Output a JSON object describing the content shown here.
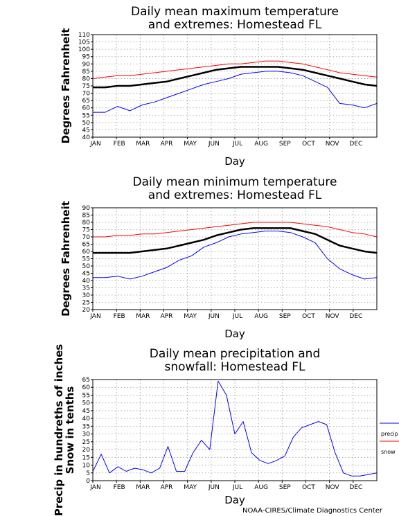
{
  "chart_data": [
    {
      "type": "line",
      "title": [
        "Daily mean maximum temperature",
        "and extremes: Homestead FL"
      ],
      "ylabel": "Degrees Fahrenheit",
      "xlabel": "Day",
      "x_ticks": [
        "JAN",
        "FEB",
        "MAR",
        "APR",
        "MAY",
        "JUN",
        "JUL",
        "AUG",
        "SEP",
        "OCT",
        "NOV",
        "DEC"
      ],
      "ylim": [
        40,
        110
      ],
      "ystep": 5,
      "grid": true,
      "series": [
        {
          "color": "#ff0000",
          "width": 1,
          "values": [
            80,
            81,
            82,
            82,
            83,
            84,
            85,
            86,
            87,
            88,
            89,
            90,
            90,
            91,
            92,
            92,
            91,
            90,
            88,
            86,
            84,
            83,
            82,
            81
          ]
        },
        {
          "color": "#000000",
          "width": 2.5,
          "values": [
            74,
            74,
            75,
            75,
            76,
            77,
            78,
            80,
            82,
            84,
            86,
            87,
            88,
            88,
            88,
            88,
            87,
            86,
            84,
            82,
            80,
            78,
            76,
            75
          ]
        },
        {
          "color": "#0000ff",
          "width": 1,
          "values": [
            57,
            57,
            61,
            58,
            62,
            64,
            67,
            70,
            73,
            76,
            78,
            80,
            83,
            84,
            85,
            85,
            84,
            82,
            78,
            74,
            63,
            62,
            60,
            63
          ]
        }
      ]
    },
    {
      "type": "line",
      "title": [
        "Daily mean minimum temperature",
        "and extremes: Homestead FL"
      ],
      "ylabel": "Degrees Fahrenheit",
      "xlabel": "Day",
      "x_ticks": [
        "JAN",
        "FEB",
        "MAR",
        "APR",
        "MAY",
        "JUN",
        "JUL",
        "AUG",
        "SEP",
        "OCT",
        "NOV",
        "DEC"
      ],
      "ylim": [
        20,
        90
      ],
      "ystep": 5,
      "grid": true,
      "series": [
        {
          "color": "#ff0000",
          "width": 1,
          "values": [
            70,
            70,
            71,
            71,
            72,
            72,
            73,
            74,
            75,
            76,
            77,
            78,
            79,
            80,
            80,
            80,
            80,
            79,
            78,
            77,
            75,
            73,
            72,
            70
          ]
        },
        {
          "color": "#000000",
          "width": 2.5,
          "values": [
            59,
            59,
            59,
            59,
            60,
            61,
            62,
            64,
            66,
            68,
            71,
            73,
            75,
            76,
            76,
            76,
            76,
            74,
            72,
            68,
            64,
            62,
            60,
            59
          ]
        },
        {
          "color": "#0000ff",
          "width": 1,
          "values": [
            42,
            42,
            43,
            41,
            43,
            46,
            49,
            54,
            57,
            63,
            66,
            70,
            72,
            73,
            74,
            74,
            73,
            70,
            66,
            55,
            48,
            44,
            41,
            42
          ]
        }
      ]
    },
    {
      "type": "line",
      "title": [
        "Daily mean precipitation and",
        "snowfall: Homestead FL"
      ],
      "ylabel": [
        "Precip in hundreths of inches",
        "Snow in tenths"
      ],
      "xlabel": "Day",
      "x_ticks": [
        "JAN",
        "FEB",
        "MAR",
        "APR",
        "MAY",
        "JUN",
        "JUL",
        "AUG",
        "SEP",
        "OCT",
        "NOV",
        "DEC"
      ],
      "ylim": [
        0,
        65
      ],
      "ystep": 5,
      "grid": true,
      "legend": [
        {
          "label": "precip",
          "color": "#0000ff"
        },
        {
          "label": "snow",
          "color": "#ff0000"
        }
      ],
      "series": [
        {
          "name": "precip",
          "color": "#0000ff",
          "width": 1,
          "values": [
            6,
            17,
            5,
            9,
            6,
            8,
            7,
            5,
            8,
            22,
            6,
            6,
            18,
            26,
            20,
            64,
            55,
            30,
            38,
            18,
            13,
            11,
            13,
            16,
            28,
            34,
            36,
            38,
            36,
            18,
            5,
            3,
            3,
            4,
            5
          ]
        },
        {
          "name": "snow",
          "color": "#ff0000",
          "width": 1,
          "values": [
            0,
            0,
            0,
            0,
            0,
            0,
            0,
            0,
            0,
            0,
            0,
            0,
            0,
            0,
            0,
            0,
            0,
            0,
            0,
            0,
            0,
            0,
            0,
            0,
            0,
            0,
            0,
            0,
            0,
            0,
            0,
            0,
            0,
            0,
            0
          ]
        }
      ]
    }
  ],
  "credit": "NOAA-CIRES/Climate Diagnostics Center"
}
